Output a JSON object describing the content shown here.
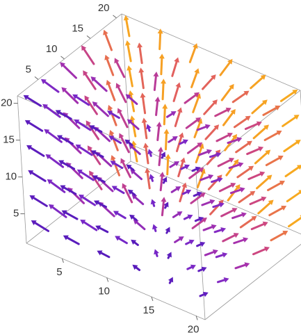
{
  "chart_data": {
    "type": "vector3d",
    "xlim": [
      1,
      21
    ],
    "ylim": [
      1,
      21
    ],
    "zlim": [
      1,
      21
    ],
    "xticks": [
      5,
      10,
      15,
      20
    ],
    "yticks": [
      5,
      10,
      15,
      20
    ],
    "zticks": [
      5,
      10,
      15,
      20
    ]
  }
}
